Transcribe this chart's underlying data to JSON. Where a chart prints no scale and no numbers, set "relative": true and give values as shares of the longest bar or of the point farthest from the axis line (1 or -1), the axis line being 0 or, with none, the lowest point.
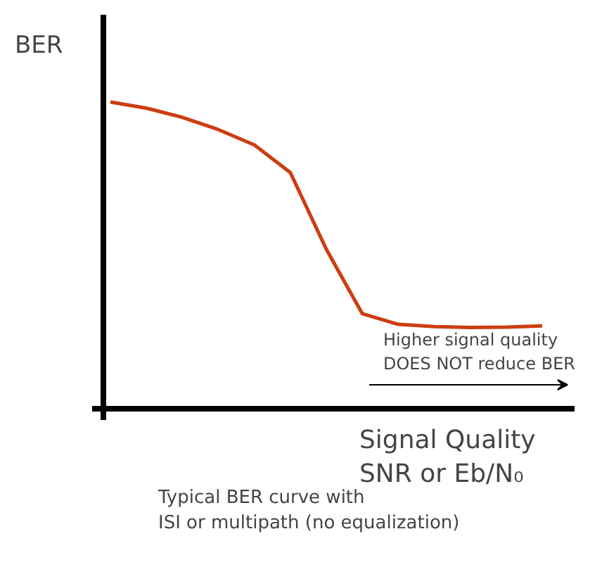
{
  "chart_data": {
    "type": "line",
    "relative": true,
    "ylabel": "BER",
    "xlabel": "Signal Quality\nSNR or Eb/N₀",
    "categories": [
      null,
      null,
      null,
      null,
      null,
      null,
      null,
      null,
      null,
      null,
      null,
      null,
      null
    ],
    "series": [
      {
        "color": "#cc3d10",
        "values": [
          1.0,
          0.98,
          0.95,
          0.91,
          0.86,
          0.77,
          0.52,
          0.31,
          0.275,
          0.268,
          0.265,
          0.266,
          0.27
        ]
      }
    ],
    "annotations": [
      "Higher signal quality\nDOES NOT reduce BER",
      "Typical BER curve with\nISI or multipath (no equalization)"
    ],
    "grid": false,
    "marker": "none",
    "line_style": "solid"
  }
}
